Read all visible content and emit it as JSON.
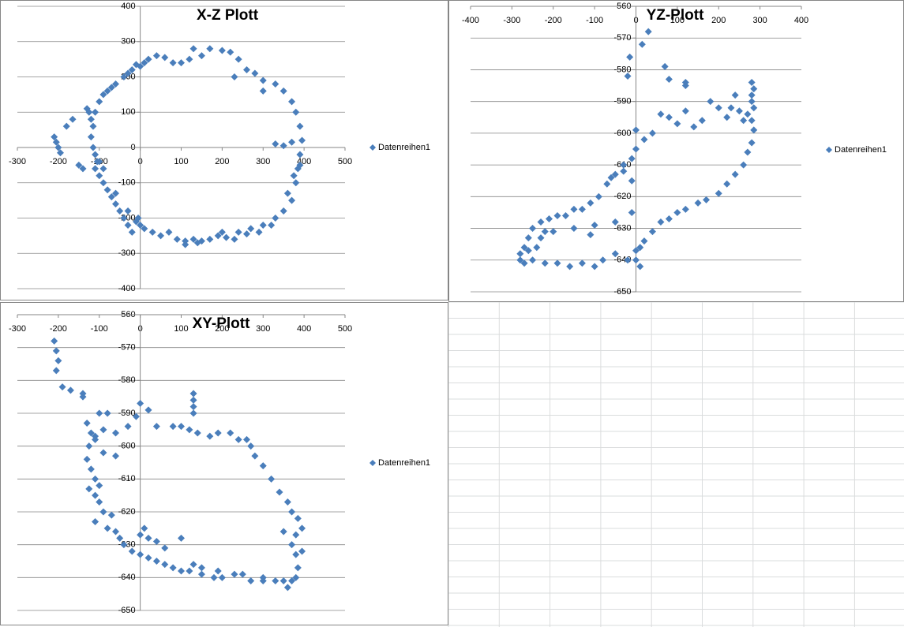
{
  "chart_data": [
    {
      "type": "scatter",
      "title": "X-Z Plott",
      "grid": true,
      "legend": "right",
      "xlim": [
        -300,
        500
      ],
      "xticks": [
        -300,
        -200,
        -100,
        0,
        100,
        200,
        300,
        400,
        500
      ],
      "ylim": [
        -400,
        400
      ],
      "yticks": [
        -400,
        -300,
        -200,
        -100,
        0,
        100,
        200,
        300,
        400
      ],
      "series": [
        {
          "name": "Datenreihen1",
          "color": "#4a7ebb",
          "x": [
            -210,
            -205,
            -200,
            -195,
            -180,
            -165,
            -150,
            -140,
            -130,
            -125,
            -120,
            -115,
            -120,
            -115,
            -110,
            -105,
            -110,
            -100,
            -90,
            -80,
            -70,
            -60,
            -50,
            -40,
            -30,
            -20,
            -10,
            0,
            10,
            30,
            50,
            70,
            90,
            110,
            130,
            150,
            170,
            190,
            210,
            240,
            270,
            300,
            330,
            350,
            370,
            380,
            385,
            390,
            395,
            390,
            380,
            370,
            350,
            330,
            300,
            280,
            260,
            240,
            220,
            200,
            170,
            150,
            130,
            120,
            100,
            80,
            60,
            40,
            20,
            0,
            -20,
            -40,
            -60,
            -80,
            -100,
            -110,
            -90,
            -70,
            -30,
            -10,
            10,
            -5,
            -30,
            -60,
            -90,
            -100,
            330,
            350,
            370,
            390,
            230,
            300,
            110,
            140,
            200,
            230,
            260,
            290,
            320,
            360,
            375
          ],
          "values": [
            30,
            15,
            0,
            -15,
            60,
            80,
            -50,
            -60,
            110,
            100,
            80,
            60,
            30,
            0,
            -20,
            -40,
            -60,
            -80,
            -100,
            -120,
            -140,
            -160,
            -180,
            -200,
            -220,
            -240,
            -210,
            -220,
            -230,
            -240,
            -250,
            -240,
            -260,
            -265,
            -260,
            -265,
            -260,
            -250,
            -255,
            -240,
            -230,
            -220,
            -200,
            -180,
            -150,
            -100,
            -60,
            -20,
            20,
            60,
            100,
            130,
            160,
            180,
            190,
            210,
            220,
            250,
            270,
            275,
            280,
            260,
            280,
            250,
            240,
            240,
            255,
            260,
            250,
            230,
            220,
            200,
            180,
            160,
            130,
            100,
            150,
            170,
            210,
            235,
            240,
            -200,
            -180,
            -130,
            -60,
            -40,
            10,
            5,
            15,
            -50,
            200,
            160,
            -275,
            -270,
            -240,
            -260,
            -245,
            -240,
            -220,
            -130,
            -80
          ]
        }
      ]
    },
    {
      "type": "scatter",
      "title": "YZ-Plott",
      "grid": true,
      "legend": "right",
      "xlim": [
        -400,
        400
      ],
      "xticks": [
        -400,
        -300,
        -200,
        -100,
        0,
        100,
        200,
        300,
        400
      ],
      "ylim": [
        -650,
        -560
      ],
      "yticks": [
        -650,
        -640,
        -630,
        -620,
        -610,
        -600,
        -590,
        -580,
        -570,
        -560
      ],
      "series": [
        {
          "name": "Datenreihen1",
          "color": "#4a7ebb",
          "x": [
            30,
            15,
            -15,
            -20,
            70,
            80,
            120,
            120,
            280,
            285,
            280,
            280,
            285,
            270,
            260,
            250,
            240,
            230,
            220,
            200,
            180,
            160,
            140,
            120,
            100,
            80,
            60,
            40,
            20,
            0,
            -10,
            -30,
            -50,
            -70,
            -90,
            -110,
            -130,
            -150,
            -170,
            -190,
            -210,
            -230,
            -250,
            -260,
            -270,
            -280,
            -280,
            -270,
            -250,
            -220,
            -190,
            -160,
            -130,
            -100,
            -80,
            -50,
            -20,
            0,
            10,
            20,
            40,
            60,
            80,
            100,
            120,
            150,
            170,
            200,
            220,
            240,
            260,
            270,
            280,
            285,
            280,
            0,
            -10,
            -30,
            -60,
            -150,
            -200,
            -230,
            -100,
            -50,
            -10,
            0,
            10,
            -110,
            -260,
            -240,
            -220
          ],
          "values": [
            -568,
            -572,
            -576,
            -582,
            -579,
            -583,
            -584,
            -585,
            -584,
            -586,
            -588,
            -590,
            -592,
            -594,
            -596,
            -593,
            -588,
            -592,
            -595,
            -592,
            -590,
            -596,
            -598,
            -593,
            -597,
            -595,
            -594,
            -600,
            -602,
            -605,
            -608,
            -610,
            -613,
            -616,
            -620,
            -622,
            -624,
            -624,
            -626,
            -626,
            -627,
            -628,
            -630,
            -633,
            -636,
            -638,
            -640,
            -641,
            -640,
            -641,
            -641,
            -642,
            -641,
            -642,
            -640,
            -638,
            -640,
            -640,
            -642,
            -634,
            -631,
            -628,
            -627,
            -625,
            -624,
            -622,
            -621,
            -619,
            -616,
            -613,
            -610,
            -606,
            -603,
            -599,
            -596,
            -599,
            -615,
            -612,
            -614,
            -630,
            -631,
            -633,
            -629,
            -628,
            -625,
            -637,
            -636,
            -632,
            -637,
            -636,
            -631
          ]
        }
      ]
    },
    {
      "type": "scatter",
      "title": "XY-Plott",
      "grid": true,
      "legend": "right",
      "xlim": [
        -300,
        500
      ],
      "xticks": [
        -300,
        -200,
        -100,
        0,
        100,
        200,
        300,
        400,
        500
      ],
      "ylim": [
        -650,
        -560
      ],
      "yticks": [
        -650,
        -640,
        -630,
        -620,
        -610,
        -600,
        -590,
        -580,
        -570,
        -560
      ],
      "series": [
        {
          "name": "Datenreihen1",
          "color": "#4a7ebb",
          "x": [
            -210,
            -205,
            -200,
            -205,
            -190,
            -170,
            -140,
            -140,
            -130,
            -120,
            -110,
            -125,
            -130,
            -120,
            -110,
            -125,
            -110,
            -100,
            -90,
            -110,
            -80,
            -60,
            -50,
            -40,
            -20,
            0,
            20,
            40,
            60,
            80,
            100,
            120,
            150,
            180,
            200,
            230,
            270,
            300,
            330,
            350,
            370,
            380,
            385,
            380,
            370,
            380,
            395,
            385,
            370,
            360,
            340,
            320,
            300,
            280,
            270,
            260,
            240,
            220,
            190,
            170,
            140,
            120,
            130,
            130,
            130,
            130,
            100,
            80,
            40,
            20,
            0,
            -10,
            -30,
            -60,
            -90,
            -110,
            -100,
            -80,
            0,
            20,
            40,
            60,
            10,
            100,
            130,
            150,
            190,
            250,
            300,
            360,
            395,
            350,
            -90,
            -60,
            -100,
            -70
          ],
          "values": [
            -568,
            -571,
            -574,
            -577,
            -582,
            -583,
            -584,
            -585,
            -593,
            -596,
            -598,
            -600,
            -604,
            -607,
            -610,
            -613,
            -615,
            -617,
            -620,
            -623,
            -625,
            -626,
            -628,
            -630,
            -632,
            -633,
            -634,
            -635,
            -636,
            -637,
            -638,
            -638,
            -639,
            -640,
            -640,
            -639,
            -641,
            -641,
            -641,
            -641,
            -641,
            -640,
            -637,
            -633,
            -630,
            -627,
            -625,
            -622,
            -620,
            -617,
            -614,
            -610,
            -606,
            -603,
            -600,
            -598,
            -598,
            -596,
            -596,
            -597,
            -596,
            -595,
            -584,
            -586,
            -588,
            -590,
            -594,
            -594,
            -594,
            -589,
            -587,
            -591,
            -594,
            -596,
            -595,
            -597,
            -590,
            -590,
            -627,
            -628,
            -629,
            -631,
            -625,
            -628,
            -636,
            -637,
            -638,
            -639,
            -640,
            -643,
            -632,
            -626,
            -602,
            -603,
            -612,
            -621
          ]
        }
      ]
    }
  ]
}
